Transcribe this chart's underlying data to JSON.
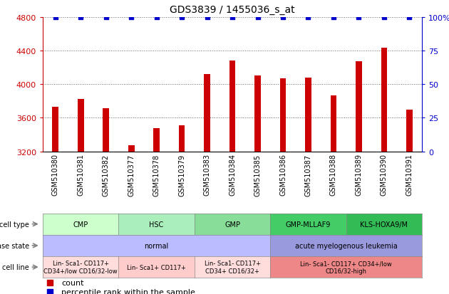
{
  "title": "GDS3839 / 1455036_s_at",
  "samples": [
    "GSM510380",
    "GSM510381",
    "GSM510382",
    "GSM510377",
    "GSM510378",
    "GSM510379",
    "GSM510383",
    "GSM510384",
    "GSM510385",
    "GSM510386",
    "GSM510387",
    "GSM510388",
    "GSM510389",
    "GSM510390",
    "GSM510391"
  ],
  "counts": [
    3730,
    3820,
    3710,
    3270,
    3480,
    3510,
    4120,
    4280,
    4100,
    4070,
    4080,
    3870,
    4270,
    4430,
    3700
  ],
  "percentiles": [
    100,
    100,
    100,
    100,
    100,
    100,
    100,
    100,
    100,
    100,
    100,
    100,
    100,
    100,
    100
  ],
  "ylim_left": [
    3200,
    4800
  ],
  "ylim_right": [
    0,
    100
  ],
  "yticks_left": [
    3200,
    3600,
    4000,
    4400,
    4800
  ],
  "yticks_right": [
    0,
    25,
    50,
    75,
    100
  ],
  "bar_color": "#cc0000",
  "dot_color": "#0000cc",
  "cell_type_groups": [
    {
      "label": "CMP",
      "start": 0,
      "end": 3,
      "color": "#ccffcc"
    },
    {
      "label": "HSC",
      "start": 3,
      "end": 6,
      "color": "#aaeebb"
    },
    {
      "label": "GMP",
      "start": 6,
      "end": 9,
      "color": "#88dd99"
    },
    {
      "label": "GMP-MLLAF9",
      "start": 9,
      "end": 12,
      "color": "#44cc66"
    },
    {
      "label": "KLS-HOXA9/M",
      "start": 12,
      "end": 15,
      "color": "#33bb55"
    }
  ],
  "disease_state_groups": [
    {
      "label": "normal",
      "start": 0,
      "end": 9,
      "color": "#bbbbff"
    },
    {
      "label": "acute myelogenous leukemia",
      "start": 9,
      "end": 15,
      "color": "#9999dd"
    }
  ],
  "cell_line_groups": [
    {
      "label": "Lin- Sca1- CD117+\nCD34+/low CD16/32-low",
      "start": 0,
      "end": 3,
      "color": "#ffdddd"
    },
    {
      "label": "Lin- Sca1+ CD117+",
      "start": 3,
      "end": 6,
      "color": "#ffcccc"
    },
    {
      "label": "Lin- Sca1- CD117+\nCD34+ CD16/32+",
      "start": 6,
      "end": 9,
      "color": "#ffdddd"
    },
    {
      "label": "Lin- Sca1- CD117+ CD34+/low\nCD16/32-high",
      "start": 9,
      "end": 15,
      "color": "#ee8888"
    }
  ],
  "legend_count_color": "#cc0000",
  "legend_percentile_color": "#0000cc"
}
